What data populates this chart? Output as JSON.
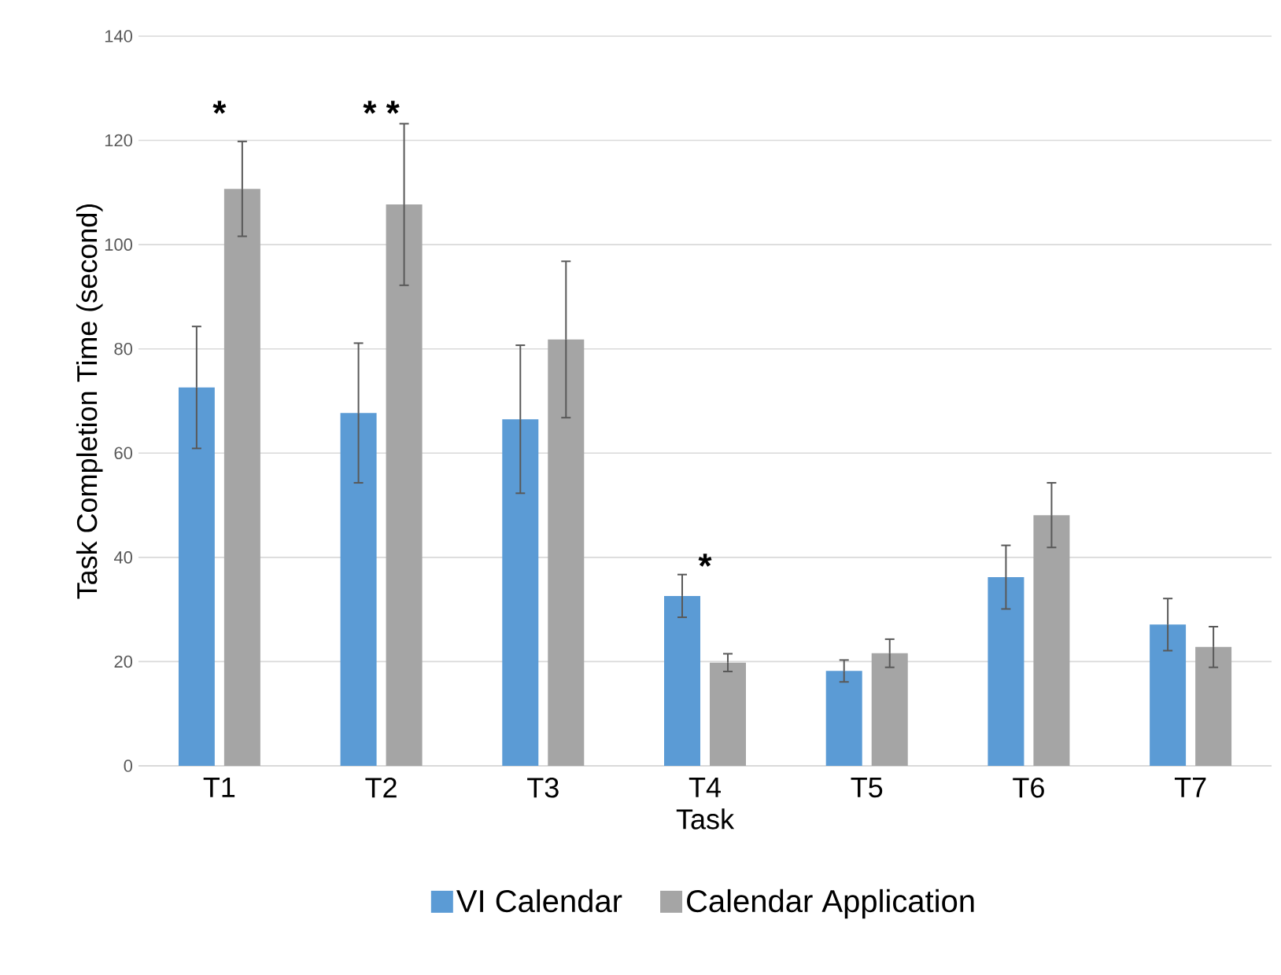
{
  "chart_data": {
    "type": "bar",
    "xlabel": "Task",
    "ylabel": "Task Completion Time (second)",
    "categories": [
      "T1",
      "T2",
      "T3",
      "T4",
      "T5",
      "T6",
      "T7"
    ],
    "series": [
      {
        "name": "VI Calendar",
        "color": "#5b9bd5",
        "values": [
          72.6,
          67.7,
          66.5,
          32.6,
          18.2,
          36.2,
          27.1
        ],
        "errors": [
          11.7,
          13.4,
          14.2,
          4.1,
          2.1,
          6.1,
          5.0
        ]
      },
      {
        "name": "Calendar Application",
        "color": "#a5a5a5",
        "values": [
          110.7,
          107.7,
          81.8,
          19.8,
          21.6,
          48.1,
          22.8
        ],
        "errors": [
          9.1,
          15.5,
          15.0,
          1.7,
          2.7,
          6.2,
          3.9
        ]
      }
    ],
    "ylim": [
      0,
      140
    ],
    "yticks": [
      0,
      20,
      40,
      60,
      80,
      100,
      120,
      140
    ],
    "grid": "y",
    "legend": "bottom",
    "annotations": [
      "*",
      "* *",
      "*"
    ]
  }
}
